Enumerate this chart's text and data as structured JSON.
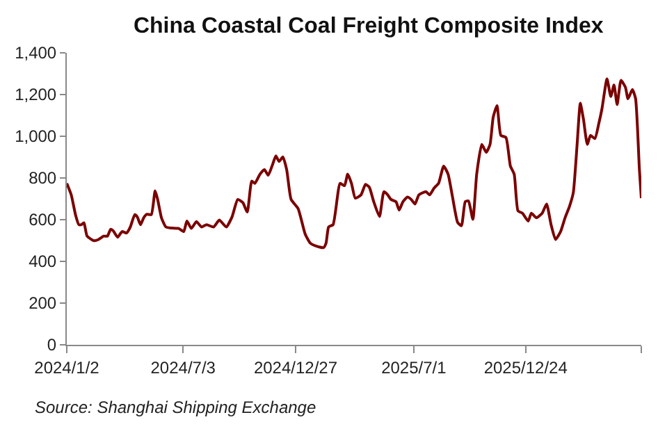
{
  "chart_data": {
    "type": "line",
    "title": "China Coastal Coal Freight Composite Index",
    "x": [
      "2024-01-02",
      "2024-01-09",
      "2024-01-16",
      "2024-01-21",
      "2024-01-25",
      "2024-01-29",
      "2024-02-03",
      "2024-02-14",
      "2024-02-21",
      "2024-02-29",
      "2024-03-06",
      "2024-03-11",
      "2024-03-15",
      "2024-03-22",
      "2024-03-29",
      "2024-04-05",
      "2024-04-11",
      "2024-04-18",
      "2024-04-22",
      "2024-04-27",
      "2024-05-02",
      "2024-05-07",
      "2024-05-14",
      "2024-05-20",
      "2024-05-24",
      "2024-05-30",
      "2024-06-06",
      "2024-06-15",
      "2024-06-26",
      "2024-07-04",
      "2024-07-09",
      "2024-07-16",
      "2024-07-24",
      "2024-08-01",
      "2024-08-09",
      "2024-08-20",
      "2024-08-29",
      "2024-09-09",
      "2024-09-18",
      "2024-09-27",
      "2024-10-05",
      "2024-10-12",
      "2024-10-19",
      "2024-10-24",
      "2024-11-01",
      "2024-11-08",
      "2024-11-14",
      "2024-11-21",
      "2024-11-26",
      "2024-12-01",
      "2024-12-07",
      "2024-12-13",
      "2024-12-20",
      "2024-12-31",
      "2025-01-11",
      "2025-01-19",
      "2025-01-29",
      "2025-02-09",
      "2025-02-13",
      "2025-02-17",
      "2025-02-24",
      "2025-03-07",
      "2025-03-14",
      "2025-03-19",
      "2025-03-25",
      "2025-03-31",
      "2025-04-09",
      "2025-04-16",
      "2025-04-22",
      "2025-04-29",
      "2025-05-08",
      "2025-05-15",
      "2025-05-21",
      "2025-05-26",
      "2025-06-03",
      "2025-06-08",
      "2025-06-14",
      "2025-06-21",
      "2025-06-27",
      "2025-07-03",
      "2025-07-09",
      "2025-07-20",
      "2025-07-26",
      "2025-08-02",
      "2025-08-09",
      "2025-08-17",
      "2025-08-24",
      "2025-08-31",
      "2025-09-08",
      "2025-09-14",
      "2025-09-20",
      "2025-09-25",
      "2025-10-02",
      "2025-10-08",
      "2025-10-16",
      "2025-10-23",
      "2025-10-29",
      "2025-11-03",
      "2025-11-09",
      "2025-11-15",
      "2025-11-23",
      "2025-11-30",
      "2025-12-06",
      "2025-12-12",
      "2025-12-19",
      "2025-12-28",
      "2026-01-02",
      "2026-01-10",
      "2026-01-19",
      "2026-01-26",
      "2026-02-02",
      "2026-02-09",
      "2026-02-17",
      "2026-02-24",
      "2026-03-03",
      "2026-03-09",
      "2026-03-15",
      "2026-03-20",
      "2026-03-25",
      "2026-03-31",
      "2026-04-05",
      "2026-04-12",
      "2026-04-18",
      "2026-04-23",
      "2026-05-01",
      "2026-05-07",
      "2026-05-12",
      "2026-05-17",
      "2026-05-23",
      "2026-05-30",
      "2026-06-03",
      "2026-06-10",
      "2026-06-15",
      "2026-06-21",
      "2026-06-24"
    ],
    "series": [
      {
        "color": "#7b0000",
        "values": [
          774,
          719,
          620,
          576,
          576,
          585,
          521,
          499,
          505,
          521,
          521,
          554,
          547,
          516,
          543,
          536,
          565,
          624,
          613,
          576,
          609,
          626,
          624,
          738,
          697,
          609,
          565,
          560,
          558,
          543,
          593,
          558,
          591,
          565,
          576,
          565,
          598,
          565,
          613,
          697,
          682,
          637,
          785,
          774,
          818,
          840,
          813,
          866,
          906,
          879,
          901,
          840,
          697,
          653,
          532,
          488,
          473,
          466,
          488,
          565,
          576,
          774,
          763,
          818,
          774,
          703,
          719,
          769,
          756,
          686,
          615,
          734,
          719,
          697,
          686,
          646,
          686,
          708,
          697,
          675,
          719,
          734,
          719,
          752,
          774,
          857,
          818,
          708,
          587,
          571,
          686,
          690,
          602,
          818,
          961,
          923,
          961,
          1092,
          1147,
          1004,
          994,
          857,
          818,
          642,
          631,
          593,
          631,
          609,
          631,
          675,
          576,
          505,
          543,
          609,
          664,
          730,
          961,
          1158,
          1081,
          961,
          1004,
          989,
          1059,
          1130,
          1275,
          1191,
          1246,
          1152,
          1268,
          1235,
          1180,
          1224,
          1180,
          840,
          703
        ]
      }
    ],
    "xlim": [
      "2024-01-02",
      "2026-06-24"
    ],
    "xticks": [
      {
        "value": "2024-01-02",
        "label": "2024/1/2"
      },
      {
        "value": "2024-07-03",
        "label": "2024/7/3"
      },
      {
        "value": "2024-12-27",
        "label": "2024/12/27"
      },
      {
        "value": "2025-07-01",
        "label": "2025/7/1"
      },
      {
        "value": "2025-12-24",
        "label": "2025/12/24"
      },
      {
        "value": "2026-06-24",
        "label": null
      }
    ],
    "ylim": [
      0,
      1400
    ],
    "yticks": [
      0,
      200,
      400,
      600,
      800,
      {
        "value": 1000,
        "label": "1,000"
      },
      {
        "value": 1200,
        "label": "1,200"
      },
      {
        "value": 1400,
        "label": "1,400"
      }
    ],
    "marker": "none",
    "line_style": "solid",
    "annotations": [
      "Source: Shanghai Shipping Exchange"
    ]
  }
}
